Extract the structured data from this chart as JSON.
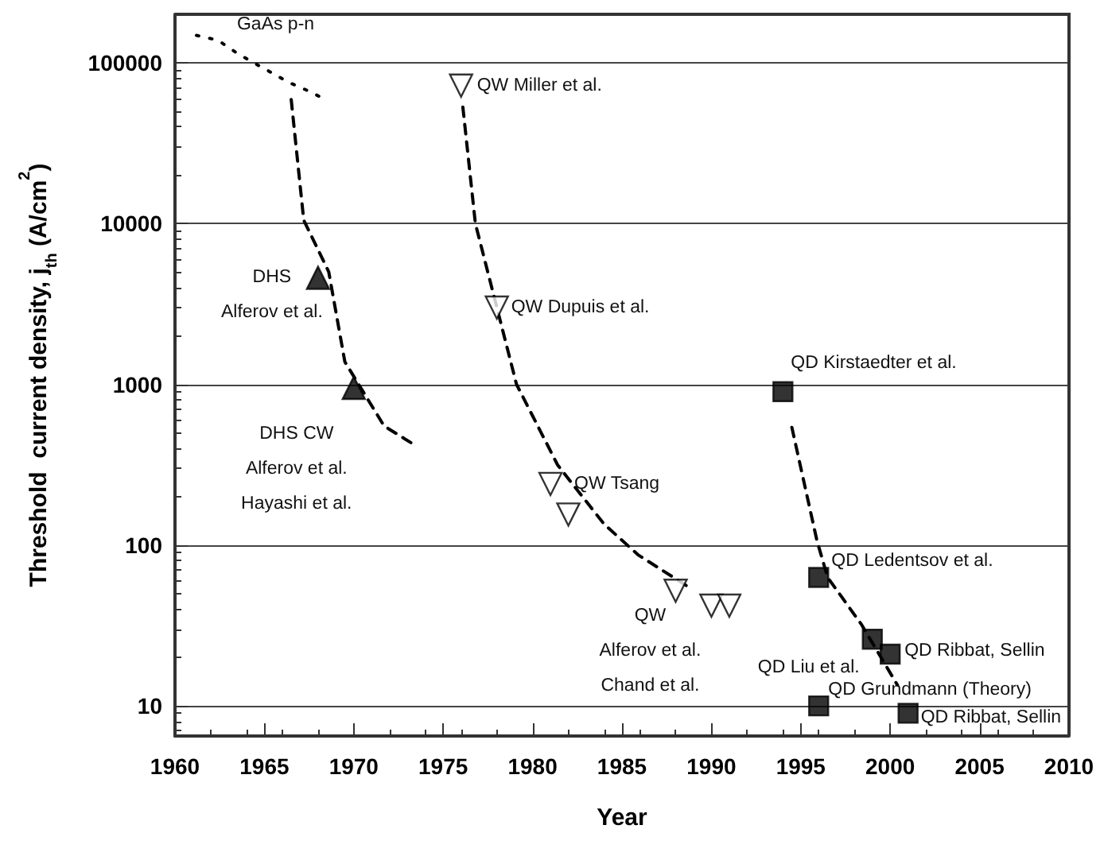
{
  "chart_data": {
    "type": "scatter",
    "xlabel": "Year",
    "ylabel": "Threshold  current density, j$_{th}$ (A/cm$^{2}$)",
    "xlim": [
      1960,
      2010
    ],
    "xticks": [
      1960,
      1965,
      1970,
      1975,
      1980,
      1985,
      1990,
      1995,
      2000,
      2005,
      2010
    ],
    "ylim": [
      6.5,
      200000
    ],
    "yticks": [
      10,
      100,
      1000,
      10000,
      100000
    ],
    "log": "y",
    "grid": "y",
    "series": [
      {
        "type": "line",
        "line_style": "dotted",
        "marker": "none",
        "color": "#000000",
        "x": [
          1961.2,
          1962.4,
          1963.5,
          1964.4,
          1965.3,
          1966.3,
          1967.3,
          1968.3
        ],
        "values": [
          148000,
          138000,
          114000,
          100000,
          88000,
          76000,
          68000,
          60000
        ]
      },
      {
        "type": "line",
        "line_style": "dashed",
        "marker": "none",
        "color": "#000000",
        "x": [
          1966.5,
          1967.2,
          1968.6,
          1969.5,
          1971.7,
          1973.4
        ],
        "values": [
          59000,
          10500,
          5000,
          1380,
          550,
          420
        ]
      },
      {
        "type": "line",
        "line_style": "dashed",
        "marker": "none",
        "color": "#000000",
        "x": [
          1976.1,
          1976.8,
          1979.1,
          1981.4,
          1984,
          1985.9,
          1988.6
        ],
        "values": [
          53000,
          10000,
          1000,
          315,
          135,
          87,
          56
        ]
      },
      {
        "type": "line",
        "line_style": "dashed",
        "marker": "none",
        "color": "#000000",
        "x": [
          1994.5,
          1995.9,
          1996.5,
          1998.4,
          2000.4
        ],
        "values": [
          540,
          107,
          63,
          32,
          13.5
        ]
      },
      {
        "marker": "triangle",
        "color": "#000000",
        "x": [
          1968,
          1970
        ],
        "values": [
          4600,
          950
        ]
      },
      {
        "marker": "triangle-down",
        "color": "#ffffff",
        "x": [
          1976,
          1978,
          1981,
          1982,
          1988,
          1990,
          1991
        ],
        "values": [
          72000,
          3000,
          240,
          155,
          52,
          42,
          42
        ]
      },
      {
        "marker": "square",
        "color": "#000000",
        "x": [
          1994,
          1996,
          1999,
          2000,
          1996,
          2001
        ],
        "values": [
          900,
          63,
          26,
          21,
          10,
          9
        ]
      }
    ],
    "annotations": [
      {
        "text": "GaAs p-n",
        "x": 1962.4,
        "y": 138000
      },
      {
        "text": "QW Miller et al.",
        "x": 1976,
        "y": 72000
      },
      {
        "text": "DHS\nAlferov et al.",
        "x": 1968,
        "y": 4600
      },
      {
        "text": "QW Dupuis et al.",
        "x": 1978,
        "y": 3000
      },
      {
        "text": "QD Kirstaedter et al.",
        "x": 1994,
        "y": 900
      },
      {
        "text": "DHS CW\nAlferov et al.\nHayashi et al.",
        "x": 1970,
        "y": 950
      },
      {
        "text": "QW Tsang",
        "x": 1981,
        "y": 240
      },
      {
        "text": "QD Ledentsov et al.",
        "x": 1996,
        "y": 63
      },
      {
        "text": "QW\nAlferov et al.\nChand et al.",
        "x": 1988,
        "y": 52
      },
      {
        "text": "QD Ribbat, Sellin",
        "x": 2000,
        "y": 21
      },
      {
        "text": "QD Liu et al.",
        "x": 1999,
        "y": 26
      },
      {
        "text": "QD Grundmann (Theory)",
        "x": 1996,
        "y": 10
      },
      {
        "text": "QD Ribbat, Sellin",
        "x": 2001,
        "y": 9
      }
    ]
  }
}
